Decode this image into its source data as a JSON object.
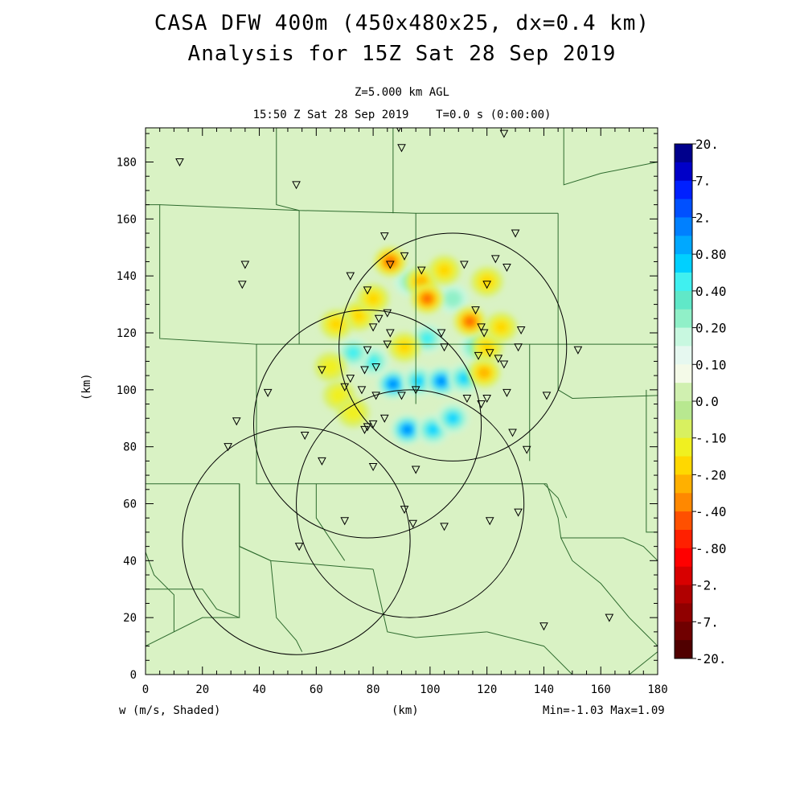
{
  "header": {
    "title_line1": "CASA DFW 400m (450x480x25, dx=0.4 km)",
    "title_line2": "Analysis for 15Z Sat 28 Sep 2019",
    "level": "Z=5.000 km AGL",
    "time": "15:50 Z Sat 28 Sep 2019    T=0.0 s (0:00:00)"
  },
  "footer": {
    "variable": "w (m/s, Shaded)",
    "x_unit": "(km)",
    "minmax": "Min=-1.03 Max=1.09"
  },
  "chart_data": {
    "type": "heatmap",
    "title": "CASA DFW 400m (450x480x25, dx=0.4 km)",
    "subtitle": "Analysis for 15Z Sat 28 Sep 2019",
    "xlabel": "(km)",
    "ylabel": "(km)",
    "xlim": [
      0,
      180
    ],
    "ylim": [
      0,
      192
    ],
    "x_ticks": [
      0,
      20,
      40,
      60,
      80,
      100,
      120,
      140,
      160,
      180
    ],
    "y_ticks": [
      0,
      20,
      40,
      60,
      80,
      100,
      120,
      140,
      160,
      180
    ],
    "variable": "w (m/s, Shaded)",
    "min": -1.03,
    "max": 1.09,
    "background_color": "#d9f2c4",
    "colorbar": {
      "labels": [
        "20.",
        "7.",
        "2.",
        "0.80",
        "0.40",
        "0.20",
        "0.10",
        "0.0",
        "-.10",
        "-.20",
        "-.40",
        "-.80",
        "-2.",
        "-7.",
        "-20."
      ],
      "colors": [
        "#00008c",
        "#0000c8",
        "#0020ff",
        "#0050ff",
        "#0080ff",
        "#00a8ff",
        "#00d0ff",
        "#40f0f0",
        "#60e8c8",
        "#90f0c8",
        "#c8f8e0",
        "#e6f8f0",
        "#f4fae8",
        "#d0f0b0",
        "#b8e890",
        "#d8f060",
        "#f0f020",
        "#ffd800",
        "#ffb000",
        "#ff8800",
        "#ff5000",
        "#ff2000",
        "#ff0000",
        "#d80000",
        "#b00000",
        "#900000",
        "#700000",
        "#500000"
      ]
    },
    "radar_rings": [
      {
        "cx": 108,
        "cy": 115,
        "r": 40
      },
      {
        "cx": 78,
        "cy": 88,
        "r": 40
      },
      {
        "cx": 53,
        "cy": 47,
        "r": 40
      },
      {
        "cx": 93,
        "cy": 60,
        "r": 40
      }
    ],
    "stations": [
      [
        12,
        180
      ],
      [
        53,
        172
      ],
      [
        89,
        192
      ],
      [
        90,
        185
      ],
      [
        126,
        190
      ],
      [
        35,
        144
      ],
      [
        34,
        137
      ],
      [
        84,
        154
      ],
      [
        91,
        147
      ],
      [
        72,
        140
      ],
      [
        78,
        135
      ],
      [
        86,
        144
      ],
      [
        97,
        142
      ],
      [
        112,
        144
      ],
      [
        123,
        146
      ],
      [
        130,
        155
      ],
      [
        127,
        143
      ],
      [
        120,
        137
      ],
      [
        85,
        127
      ],
      [
        82,
        125
      ],
      [
        80,
        122
      ],
      [
        86,
        120
      ],
      [
        85,
        116
      ],
      [
        78,
        114
      ],
      [
        81,
        108
      ],
      [
        77,
        107
      ],
      [
        72,
        104
      ],
      [
        70,
        101
      ],
      [
        76,
        100
      ],
      [
        62,
        107
      ],
      [
        43,
        99
      ],
      [
        32,
        89
      ],
      [
        29,
        80
      ],
      [
        56,
        84
      ],
      [
        62,
        75
      ],
      [
        80,
        73
      ],
      [
        84,
        90
      ],
      [
        80,
        88
      ],
      [
        78,
        87
      ],
      [
        77,
        86
      ],
      [
        81,
        98
      ],
      [
        90,
        98
      ],
      [
        95,
        100
      ],
      [
        104,
        120
      ],
      [
        105,
        115
      ],
      [
        116,
        128
      ],
      [
        118,
        122
      ],
      [
        119,
        120
      ],
      [
        117,
        112
      ],
      [
        121,
        113
      ],
      [
        124,
        111
      ],
      [
        126,
        109
      ],
      [
        120,
        97
      ],
      [
        118,
        95
      ],
      [
        113,
        97
      ],
      [
        127,
        99
      ],
      [
        131,
        115
      ],
      [
        132,
        121
      ],
      [
        129,
        85
      ],
      [
        134,
        79
      ],
      [
        141,
        98
      ],
      [
        152,
        114
      ],
      [
        95,
        72
      ],
      [
        91,
        58
      ],
      [
        70,
        54
      ],
      [
        94,
        53
      ],
      [
        105,
        52
      ],
      [
        121,
        54
      ],
      [
        131,
        57
      ],
      [
        54,
        45
      ],
      [
        140,
        17
      ],
      [
        163,
        20
      ]
    ],
    "features": [
      {
        "sign": "up",
        "x": 87,
        "y": 102,
        "v": 0.8
      },
      {
        "sign": "up",
        "x": 96,
        "y": 103,
        "v": 0.6
      },
      {
        "sign": "up",
        "x": 104,
        "y": 103,
        "v": 0.8
      },
      {
        "sign": "up",
        "x": 112,
        "y": 104,
        "v": 0.6
      },
      {
        "sign": "up",
        "x": 92,
        "y": 86,
        "v": 0.8
      },
      {
        "sign": "up",
        "x": 101,
        "y": 86,
        "v": 0.6
      },
      {
        "sign": "up",
        "x": 108,
        "y": 90,
        "v": 0.6
      },
      {
        "sign": "up",
        "x": 80,
        "y": 110,
        "v": 0.4
      },
      {
        "sign": "up",
        "x": 73,
        "y": 113,
        "v": 0.4
      },
      {
        "sign": "up",
        "x": 116,
        "y": 115,
        "v": 0.4
      },
      {
        "sign": "up",
        "x": 99,
        "y": 118,
        "v": 0.4
      },
      {
        "sign": "up",
        "x": 108,
        "y": 132,
        "v": 0.3
      },
      {
        "sign": "up",
        "x": 93,
        "y": 138,
        "v": 0.3
      },
      {
        "sign": "down",
        "x": 86,
        "y": 145,
        "v": -0.8
      },
      {
        "sign": "down",
        "x": 97,
        "y": 138,
        "v": -0.6
      },
      {
        "sign": "down",
        "x": 99,
        "y": 132,
        "v": -0.8
      },
      {
        "sign": "down",
        "x": 105,
        "y": 142,
        "v": -0.4
      },
      {
        "sign": "down",
        "x": 114,
        "y": 124,
        "v": -0.8
      },
      {
        "sign": "down",
        "x": 119,
        "y": 106,
        "v": -0.6
      },
      {
        "sign": "down",
        "x": 120,
        "y": 115,
        "v": -0.4
      },
      {
        "sign": "down",
        "x": 125,
        "y": 122,
        "v": -0.4
      },
      {
        "sign": "down",
        "x": 75,
        "y": 126,
        "v": -0.4
      },
      {
        "sign": "down",
        "x": 67,
        "y": 123,
        "v": -0.4
      },
      {
        "sign": "down",
        "x": 80,
        "y": 132,
        "v": -0.4
      },
      {
        "sign": "down",
        "x": 91,
        "y": 115,
        "v": -0.4
      },
      {
        "sign": "down",
        "x": 65,
        "y": 108,
        "v": -0.3
      },
      {
        "sign": "down",
        "x": 68,
        "y": 98,
        "v": -0.3
      },
      {
        "sign": "down",
        "x": 73,
        "y": 92,
        "v": -0.2
      },
      {
        "sign": "down",
        "x": 120,
        "y": 138,
        "v": -0.4
      }
    ],
    "boundaries": [
      [
        [
          0,
          165
        ],
        [
          5,
          165
        ],
        [
          5,
          118
        ],
        [
          39,
          116
        ],
        [
          39,
          67
        ],
        [
          110,
          67
        ],
        [
          135,
          67
        ],
        [
          141,
          67
        ]
      ],
      [
        [
          46,
          192
        ],
        [
          46,
          165
        ],
        [
          54,
          163
        ],
        [
          95,
          162
        ],
        [
          115,
          162
        ],
        [
          145,
          162
        ]
      ],
      [
        [
          5,
          165
        ],
        [
          54,
          163
        ]
      ],
      [
        [
          54,
          163
        ],
        [
          54,
          116
        ]
      ],
      [
        [
          39,
          116
        ],
        [
          135,
          116
        ],
        [
          155,
          116
        ],
        [
          180,
          116
        ]
      ],
      [
        [
          95,
          162
        ],
        [
          95,
          116
        ],
        [
          95,
          95
        ]
      ],
      [
        [
          87,
          192
        ],
        [
          87,
          162
        ]
      ],
      [
        [
          147,
          192
        ],
        [
          147,
          172
        ],
        [
          160,
          176
        ],
        [
          180,
          180
        ]
      ],
      [
        [
          145,
          162
        ],
        [
          145,
          116
        ]
      ],
      [
        [
          135,
          116
        ],
        [
          135,
          75
        ]
      ],
      [
        [
          0,
          67
        ],
        [
          33,
          67
        ],
        [
          33,
          20
        ],
        [
          25,
          23
        ],
        [
          20,
          30
        ],
        [
          12,
          30
        ],
        [
          0,
          30
        ]
      ],
      [
        [
          33,
          67
        ],
        [
          33,
          45
        ],
        [
          44,
          40
        ]
      ],
      [
        [
          44,
          40
        ],
        [
          46,
          20
        ],
        [
          53,
          12
        ],
        [
          55,
          8
        ]
      ],
      [
        [
          33,
          45
        ],
        [
          44,
          40
        ],
        [
          80,
          37
        ]
      ],
      [
        [
          80,
          37
        ],
        [
          85,
          15
        ],
        [
          95,
          13
        ],
        [
          120,
          15
        ]
      ],
      [
        [
          0,
          43
        ],
        [
          3,
          35
        ],
        [
          10,
          28
        ],
        [
          10,
          15
        ]
      ],
      [
        [
          0,
          10
        ],
        [
          20,
          20
        ],
        [
          33,
          20
        ]
      ],
      [
        [
          60,
          67
        ],
        [
          60,
          55
        ],
        [
          70,
          40
        ]
      ],
      [
        [
          141,
          67
        ],
        [
          145,
          55
        ],
        [
          146,
          48
        ],
        [
          168,
          48
        ],
        [
          175,
          45
        ],
        [
          180,
          40
        ]
      ],
      [
        [
          146,
          48
        ],
        [
          150,
          40
        ],
        [
          160,
          32
        ],
        [
          170,
          20
        ],
        [
          175,
          15
        ],
        [
          180,
          10
        ]
      ],
      [
        [
          140,
          67
        ],
        [
          145,
          62
        ],
        [
          148,
          55
        ]
      ],
      [
        [
          176,
          100
        ],
        [
          176,
          50
        ],
        [
          180,
          50
        ]
      ],
      [
        [
          150,
          0
        ],
        [
          140,
          10
        ],
        [
          120,
          15
        ]
      ],
      [
        [
          170,
          0
        ],
        [
          180,
          8
        ]
      ],
      [
        [
          145,
          116
        ],
        [
          145,
          100
        ],
        [
          150,
          97
        ],
        [
          180,
          98
        ]
      ]
    ]
  }
}
